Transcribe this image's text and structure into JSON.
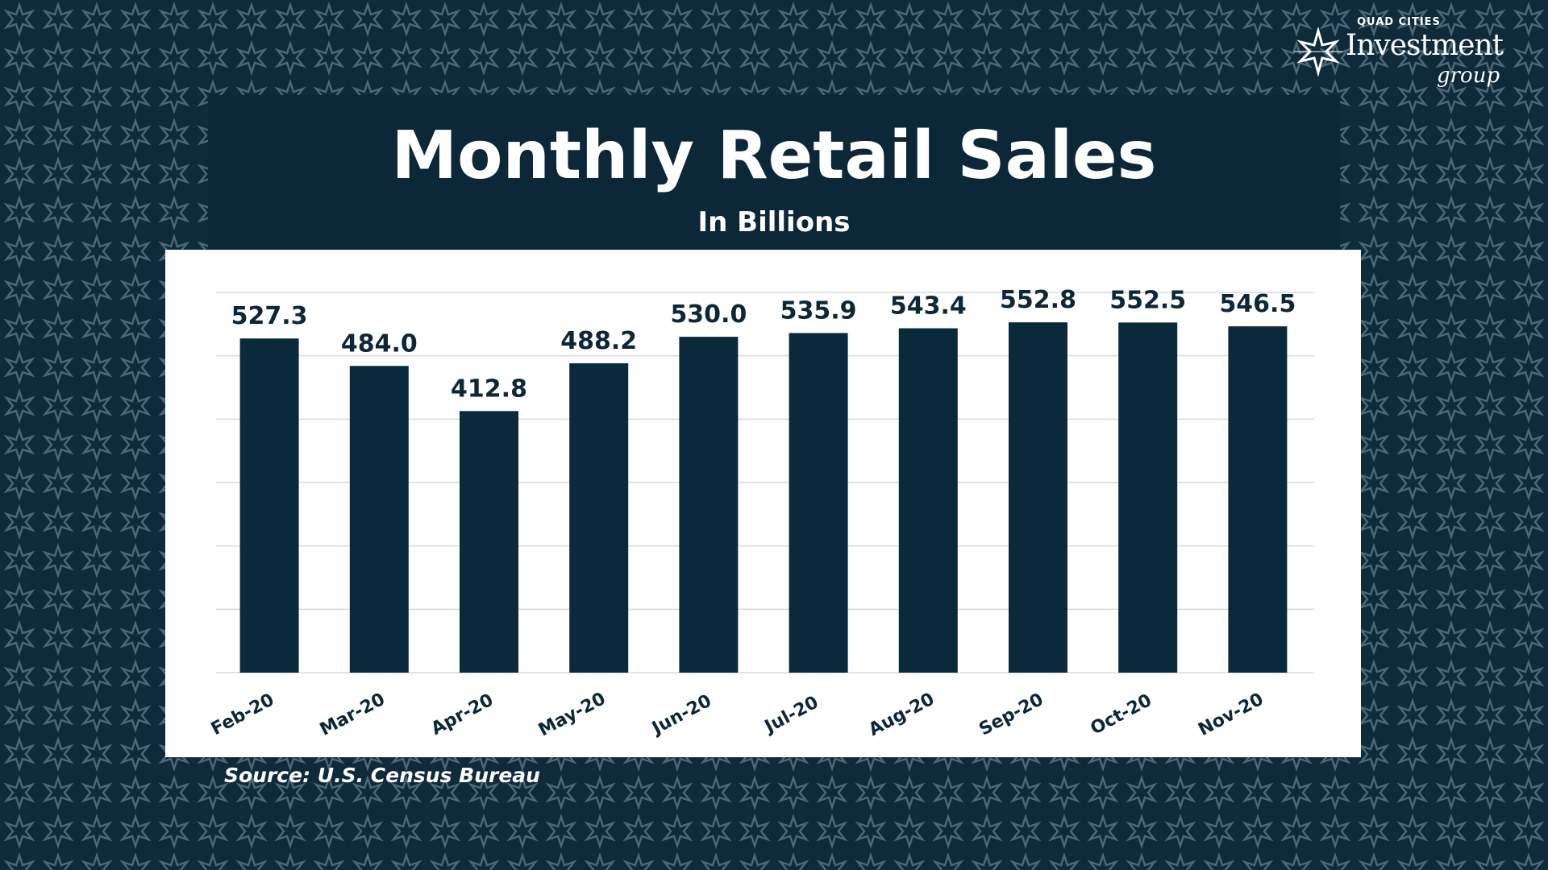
{
  "logo": {
    "line1": "QUAD CITIES",
    "line2": "Investment",
    "line3": "group"
  },
  "colors": {
    "background": "#0e2a3b",
    "bar": "#0a2a3c",
    "panel": "#ffffff",
    "grid": "#d9d9d9"
  },
  "chart_data": {
    "type": "bar",
    "title": "Monthly Retail Sales",
    "subtitle": "In Billions",
    "categories": [
      "Feb-20",
      "Mar-20",
      "Apr-20",
      "May-20",
      "Jun-20",
      "Jul-20",
      "Aug-20",
      "Sep-20",
      "Oct-20",
      "Nov-20"
    ],
    "values": [
      527.3,
      484.0,
      412.8,
      488.2,
      530.0,
      535.9,
      543.4,
      552.8,
      552.5,
      546.5
    ],
    "data_labels": [
      "527.3",
      "484.0",
      "412.8",
      "488.2",
      "530.0",
      "535.9",
      "543.4",
      "552.8",
      "552.5",
      "546.5"
    ],
    "ylim": [
      0,
      600
    ],
    "y_gridline_step": 100,
    "grid": true,
    "y_tick_labels_shown": false,
    "xlabel": "",
    "ylabel": ""
  },
  "source": "Source: U.S. Census Bureau"
}
